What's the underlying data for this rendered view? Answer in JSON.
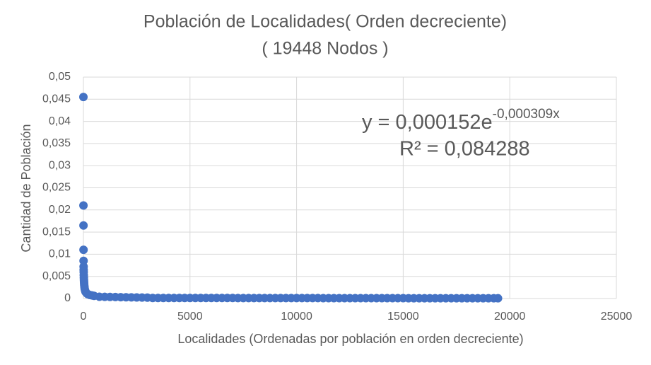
{
  "chart_data": {
    "type": "scatter",
    "title": "Población de Localidades( Orden decreciente)",
    "subtitle": "( 19448 Nodos )",
    "x_label": "Localidades (Ordenadas por población en orden decreciente)",
    "y_label": "Cantidad de Población",
    "trendline": {
      "equation": "y = 0,000152e",
      "exponent": "-0,000309x",
      "r_squared": "R² = 0,084288"
    },
    "color": "#4472c4",
    "grid": true,
    "xlim": [
      0,
      25000
    ],
    "xticks": [
      0,
      5000,
      10000,
      15000,
      20000,
      25000
    ],
    "ylim": [
      0,
      0.05
    ],
    "yticks": [
      0,
      {
        "value": 0.005,
        "label": "0,005"
      },
      {
        "value": 0.01,
        "label": "0,01"
      },
      {
        "value": 0.015,
        "label": "0,015"
      },
      {
        "value": 0.02,
        "label": "0,02"
      },
      {
        "value": 0.025,
        "label": "0,025"
      },
      {
        "value": 0.03,
        "label": "0,03"
      },
      {
        "value": 0.035,
        "label": "0,035"
      },
      {
        "value": 0.04,
        "label": "0,04"
      },
      {
        "value": 0.045,
        "label": "0,045"
      },
      {
        "value": 0.05,
        "label": "0,05"
      }
    ],
    "x": [
      0,
      2,
      4,
      6,
      8,
      10,
      12,
      15,
      18,
      22,
      26,
      30,
      35,
      40,
      50,
      60,
      80,
      100,
      150,
      200,
      300,
      400,
      500,
      750,
      1000,
      1250,
      1500,
      1750,
      2000,
      2250,
      2500,
      2750,
      3000,
      3250,
      3500,
      3750,
      4000,
      4250,
      4500,
      4750,
      5000,
      5250,
      5500,
      5750,
      6000,
      6250,
      6500,
      6750,
      7000,
      7250,
      7500,
      7750,
      8000,
      8250,
      8500,
      8750,
      9000,
      9250,
      9500,
      9750,
      10000,
      10250,
      10500,
      10750,
      11000,
      11250,
      11500,
      11750,
      12000,
      12250,
      12500,
      12750,
      13000,
      13250,
      13500,
      13750,
      14000,
      14250,
      14500,
      14750,
      15000,
      15250,
      15500,
      15750,
      16000,
      16250,
      16500,
      16750,
      17000,
      17250,
      17500,
      17750,
      18000,
      18250,
      18500,
      18750,
      19000,
      19250,
      19448
    ],
    "values": [
      0.0455,
      0.021,
      0.0165,
      0.011,
      0.0085,
      0.0072,
      0.0065,
      0.006,
      0.0053,
      0.0047,
      0.0042,
      0.0038,
      0.0034,
      0.003,
      0.0026,
      0.0022,
      0.0018,
      0.0015,
      0.0012,
      0.001,
      0.0008,
      0.0007,
      0.0006,
      0.0004,
      0.00038,
      0.00035,
      0.00033,
      0.0003,
      0.00028,
      0.00026,
      0.00024,
      0.00022,
      0.0002,
      0.00012,
      0.00012,
      0.00012,
      0.00012,
      0.00012,
      0.00012,
      0.00012,
      0.00012,
      0.00012,
      0.00012,
      0.00012,
      0.00012,
      0.00012,
      0.00012,
      0.00012,
      0.00012,
      0.0001,
      0.0001,
      0.0001,
      0.0001,
      0.0001,
      0.0001,
      0.0001,
      0.0001,
      0.0001,
      0.0001,
      0.0001,
      0.0001,
      0.0001,
      0.0001,
      0.0001,
      0.0001,
      8e-05,
      8e-05,
      8e-05,
      8e-05,
      8e-05,
      8e-05,
      8e-05,
      8e-05,
      8e-05,
      8e-05,
      8e-05,
      8e-05,
      8e-05,
      8e-05,
      8e-05,
      8e-05,
      6e-05,
      6e-05,
      6e-05,
      6e-05,
      6e-05,
      6e-05,
      6e-05,
      6e-05,
      6e-05,
      6e-05,
      6e-05,
      6e-05,
      6e-05,
      6e-05,
      6e-05,
      6e-05,
      6e-05,
      5e-05
    ]
  }
}
